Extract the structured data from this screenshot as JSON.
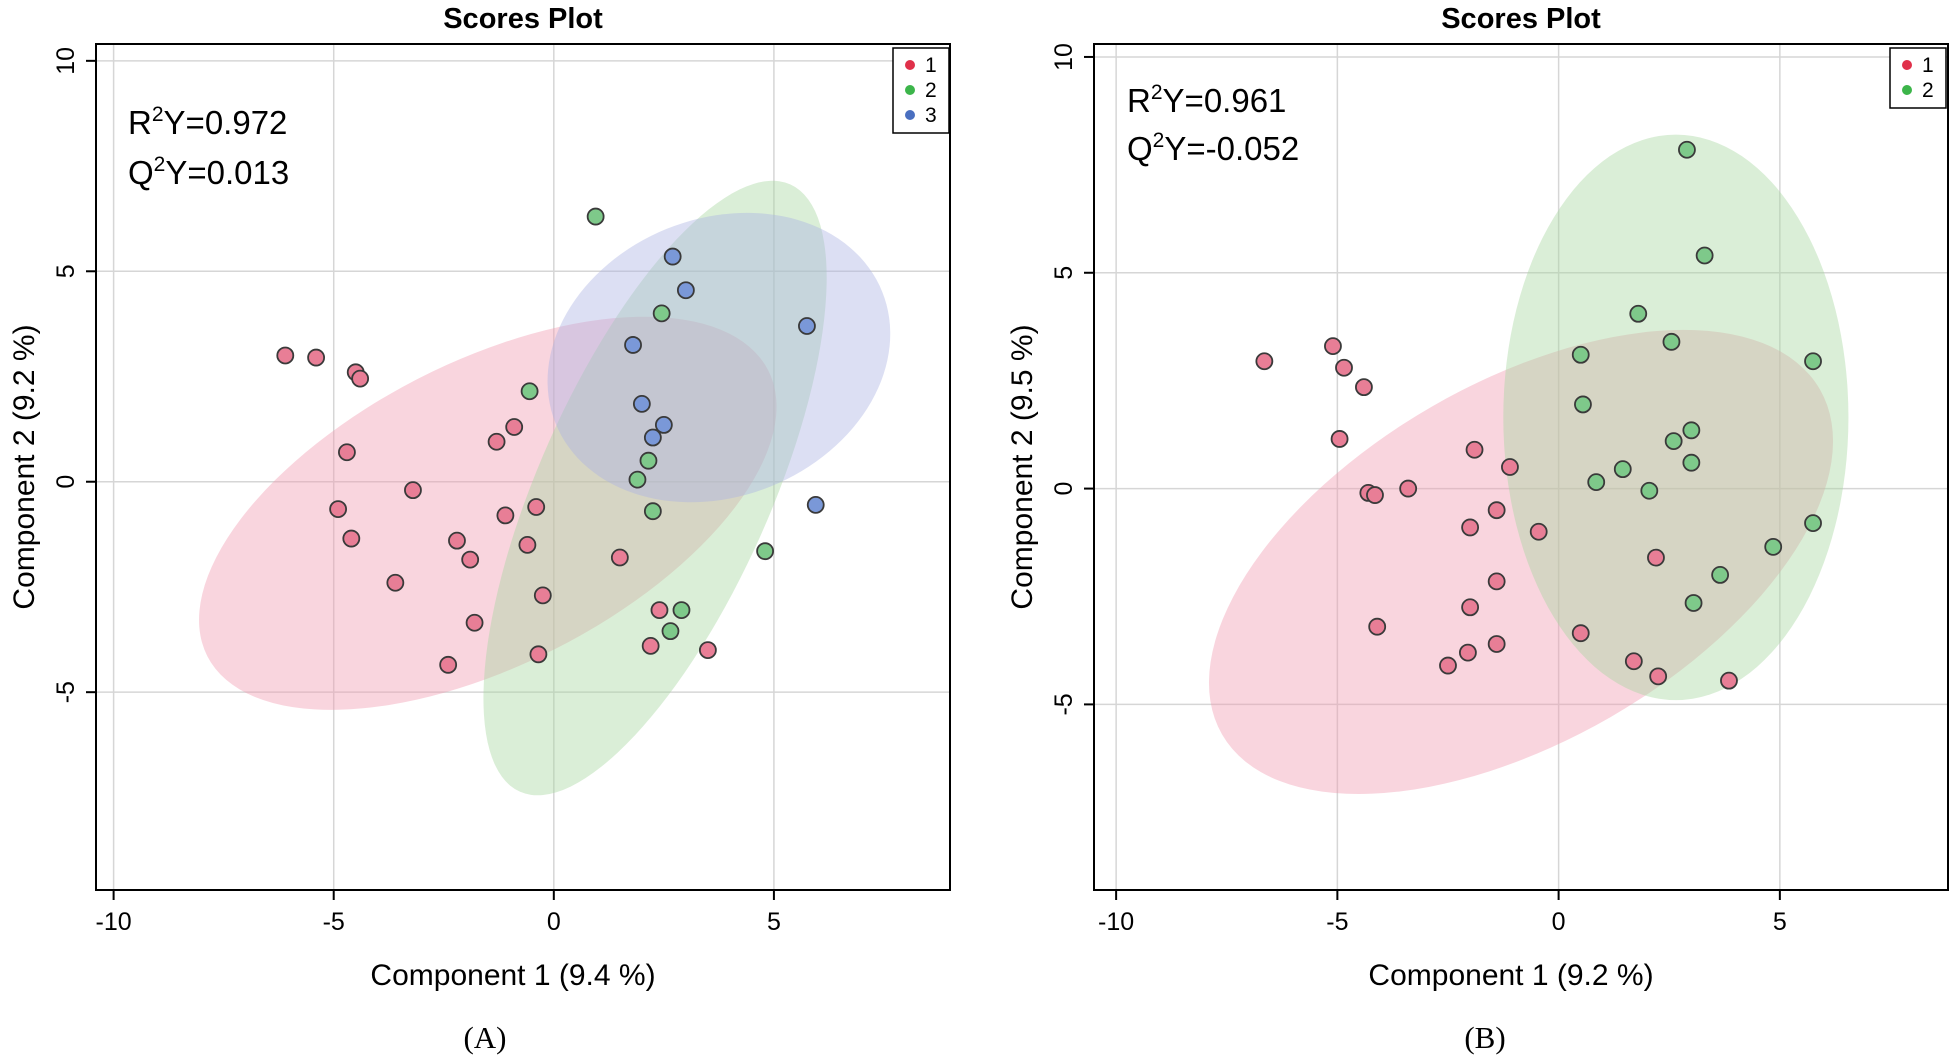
{
  "chart_data": [
    {
      "type": "scatter",
      "panel": "A",
      "title": "Scores Plot",
      "caption": "(A)",
      "xlabel": "Component 1 (9.4 %)",
      "ylabel": "Component 2 (9.2 %)",
      "xlim": [
        -10.4,
        9.0
      ],
      "ylim": [
        -9.7,
        10.4
      ],
      "xticks": [
        -10,
        -5,
        0,
        5
      ],
      "yticks": [
        10,
        5,
        0,
        -5
      ],
      "tick_labels_x": [
        "-10",
        "-5",
        "0",
        "5"
      ],
      "tick_labels_y": [
        "10",
        "5",
        "0",
        "-5"
      ],
      "grid": true,
      "stats": {
        "r2y_prefix": "R",
        "r2y_value": "Y=0.972",
        "q2y_prefix": "Q",
        "q2y_value": "Y=0.013",
        "superscript": "2"
      },
      "legend": {
        "position": "top-right",
        "entries": [
          {
            "label": "1",
            "color": "#e0304a"
          },
          {
            "label": "2",
            "color": "#3cb54a"
          },
          {
            "label": "3",
            "color": "#4a6fc0"
          }
        ]
      },
      "series": [
        {
          "name": "1",
          "color": "#e87e96",
          "points": [
            [
              -6.1,
              3.0
            ],
            [
              -5.4,
              2.95
            ],
            [
              -4.5,
              2.6
            ],
            [
              -4.4,
              2.45
            ],
            [
              -4.7,
              0.7
            ],
            [
              -4.9,
              -0.65
            ],
            [
              -4.6,
              -1.35
            ],
            [
              -3.6,
              -2.4
            ],
            [
              -3.2,
              -0.2
            ],
            [
              -2.2,
              -1.4
            ],
            [
              -1.9,
              -1.85
            ],
            [
              -1.8,
              -3.35
            ],
            [
              -2.4,
              -4.35
            ],
            [
              -1.3,
              0.95
            ],
            [
              -0.9,
              1.3
            ],
            [
              -1.1,
              -0.8
            ],
            [
              -0.6,
              -1.5
            ],
            [
              -0.4,
              -0.6
            ],
            [
              -0.25,
              -2.7
            ],
            [
              -0.35,
              -4.1
            ],
            [
              1.5,
              -1.8
            ],
            [
              2.4,
              -3.05
            ],
            [
              2.2,
              -3.9
            ],
            [
              3.5,
              -4.0
            ]
          ]
        },
        {
          "name": "2",
          "color": "#7ec98a",
          "points": [
            [
              0.95,
              6.3
            ],
            [
              2.45,
              4.0
            ],
            [
              -0.55,
              2.15
            ],
            [
              2.15,
              0.5
            ],
            [
              1.9,
              0.05
            ],
            [
              2.25,
              -0.7
            ],
            [
              4.8,
              -1.65
            ],
            [
              2.9,
              -3.05
            ],
            [
              2.65,
              -3.55
            ]
          ]
        },
        {
          "name": "3",
          "color": "#7a98d8",
          "points": [
            [
              2.7,
              5.35
            ],
            [
              3.0,
              4.55
            ],
            [
              5.75,
              3.7
            ],
            [
              1.8,
              3.25
            ],
            [
              2.0,
              1.85
            ],
            [
              2.5,
              1.35
            ],
            [
              2.25,
              1.05
            ],
            [
              5.95,
              -0.55
            ]
          ]
        }
      ],
      "ellipses": [
        {
          "group": "1",
          "color": "#f19bb1",
          "cx": -1.5,
          "cy": -0.75,
          "rx": 7.15,
          "ry": 3.6,
          "angle_deg": 27
        },
        {
          "group": "2",
          "color": "#a6d6a0",
          "cx": 2.3,
          "cy": -0.15,
          "rx": 7.55,
          "ry": 2.75,
          "angle_deg": 66
        },
        {
          "group": "3",
          "color": "#abb3e3",
          "cx": 3.75,
          "cy": 2.95,
          "rx": 4.0,
          "ry": 3.3,
          "angle_deg": 22
        }
      ]
    },
    {
      "type": "scatter",
      "panel": "B",
      "title": "Scores Plot",
      "caption": "(B)",
      "xlabel": "Component 1 (9.2 %)",
      "ylabel": "Component 2 (9.5 %)",
      "xlim": [
        -10.5,
        8.8
      ],
      "ylim": [
        -9.3,
        10.3
      ],
      "xticks": [
        -10,
        -5,
        0,
        5
      ],
      "yticks": [
        10,
        5,
        0,
        -5
      ],
      "tick_labels_x": [
        "-10",
        "-5",
        "0",
        "5"
      ],
      "tick_labels_y": [
        "10",
        "5",
        "0",
        "-5"
      ],
      "grid": true,
      "stats": {
        "r2y_prefix": "R",
        "r2y_value": "Y=0.961",
        "q2y_prefix": "Q",
        "q2y_value": "Y=-0.052",
        "superscript": "2"
      },
      "legend": {
        "position": "top-right",
        "entries": [
          {
            "label": "1",
            "color": "#e0304a"
          },
          {
            "label": "2",
            "color": "#3cb54a"
          }
        ]
      },
      "series": [
        {
          "name": "1",
          "color": "#e87e96",
          "points": [
            [
              -6.65,
              2.95
            ],
            [
              -5.1,
              3.3
            ],
            [
              -4.85,
              2.8
            ],
            [
              -4.4,
              2.35
            ],
            [
              -4.95,
              1.15
            ],
            [
              -4.3,
              -0.1
            ],
            [
              -4.15,
              -0.15
            ],
            [
              -3.4,
              0.0
            ],
            [
              -1.9,
              0.9
            ],
            [
              -1.1,
              0.5
            ],
            [
              -1.4,
              -0.5
            ],
            [
              -2.0,
              -0.9
            ],
            [
              -0.45,
              -1.0
            ],
            [
              -1.4,
              -2.15
            ],
            [
              -2.0,
              -2.75
            ],
            [
              -4.1,
              -3.2
            ],
            [
              -1.4,
              -3.6
            ],
            [
              -2.05,
              -3.8
            ],
            [
              -2.5,
              -4.1
            ],
            [
              0.5,
              -3.35
            ],
            [
              1.7,
              -4.0
            ],
            [
              2.25,
              -4.35
            ],
            [
              2.2,
              -1.6
            ],
            [
              3.85,
              -4.45
            ]
          ]
        },
        {
          "name": "2",
          "color": "#7ec98a",
          "points": [
            [
              2.9,
              7.85
            ],
            [
              3.3,
              5.4
            ],
            [
              1.8,
              4.05
            ],
            [
              2.55,
              3.4
            ],
            [
              0.5,
              3.1
            ],
            [
              5.75,
              2.95
            ],
            [
              0.55,
              1.95
            ],
            [
              3.0,
              1.35
            ],
            [
              2.6,
              1.1
            ],
            [
              1.45,
              0.45
            ],
            [
              0.85,
              0.15
            ],
            [
              2.05,
              -0.05
            ],
            [
              3.0,
              0.6
            ],
            [
              5.75,
              -0.8
            ],
            [
              4.85,
              -1.35
            ],
            [
              3.65,
              -2.0
            ],
            [
              3.05,
              -2.65
            ]
          ]
        }
      ],
      "ellipses": [
        {
          "group": "1",
          "color": "#f19bb1",
          "cx": -0.85,
          "cy": -1.7,
          "rx": 7.8,
          "ry": 4.15,
          "angle_deg": 30
        },
        {
          "group": "2",
          "color": "#a6d6a0",
          "cx": 2.65,
          "cy": 1.65,
          "rx": 3.9,
          "ry": 6.55,
          "angle_deg": 0
        }
      ]
    }
  ]
}
